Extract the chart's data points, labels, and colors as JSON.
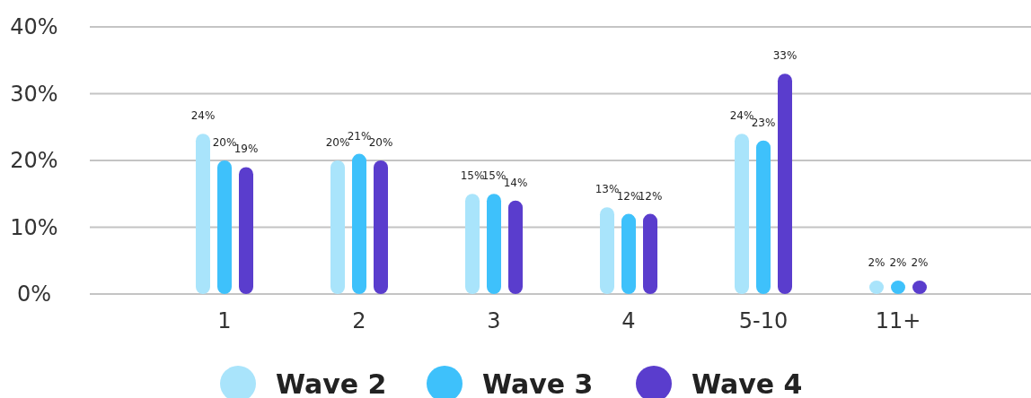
{
  "chart_data": {
    "type": "bar",
    "categories": [
      "1",
      "2",
      "3",
      "4",
      "5-10",
      "11+"
    ],
    "series": [
      {
        "name": "Wave 2",
        "color": "#a9e4fb",
        "values": [
          24,
          20,
          15,
          13,
          24,
          2
        ],
        "value_labels": [
          "24%",
          "20%",
          "15%",
          "13%",
          "24%",
          "2%"
        ]
      },
      {
        "name": "Wave 3",
        "color": "#3ec1fb",
        "values": [
          20,
          21,
          15,
          12,
          23,
          2
        ],
        "value_labels": [
          "20%",
          "21%",
          "15%",
          "12%",
          "23%",
          "2%"
        ]
      },
      {
        "name": "Wave 4",
        "color": "#5a3dcd",
        "values": [
          19,
          20,
          14,
          12,
          33,
          2
        ],
        "value_labels": [
          "19%",
          "20%",
          "14%",
          "12%",
          "33%",
          "2%"
        ]
      }
    ],
    "ylim": [
      0,
      40
    ],
    "yticks": [
      {
        "value": 0,
        "label": "0%"
      },
      {
        "value": 10,
        "label": "10%"
      },
      {
        "value": 20,
        "label": "20%"
      },
      {
        "value": 30,
        "label": "30%"
      },
      {
        "value": 40,
        "label": "40%"
      }
    ],
    "grid": "y",
    "legend": "bottom"
  }
}
